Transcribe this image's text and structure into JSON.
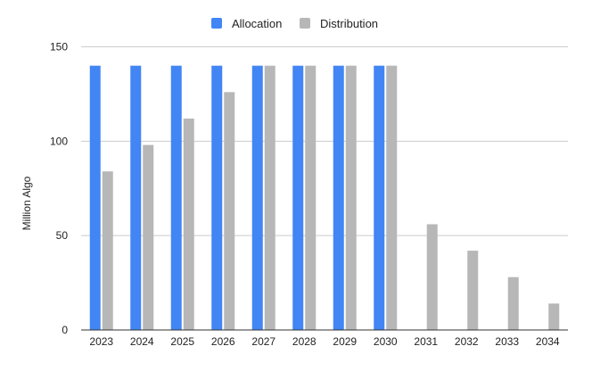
{
  "chart_data": {
    "type": "bar",
    "title": "",
    "xlabel": "",
    "ylabel": "Million Algo",
    "ylim": [
      0,
      150
    ],
    "yticks": [
      0,
      50,
      100,
      150
    ],
    "grid": true,
    "legend_position": "top-center",
    "categories": [
      "2023",
      "2024",
      "2025",
      "2026",
      "2027",
      "2028",
      "2029",
      "2030",
      "2031",
      "2032",
      "2033",
      "2034"
    ],
    "series": [
      {
        "name": "Allocation",
        "color": "#4285f4",
        "values": [
          140,
          140,
          140,
          140,
          140,
          140,
          140,
          140,
          0,
          0,
          0,
          0
        ]
      },
      {
        "name": "Distribution",
        "color": "#b7b7b7",
        "values": [
          84,
          98,
          112,
          126,
          140,
          140,
          140,
          140,
          56,
          42,
          28,
          14
        ]
      }
    ]
  }
}
